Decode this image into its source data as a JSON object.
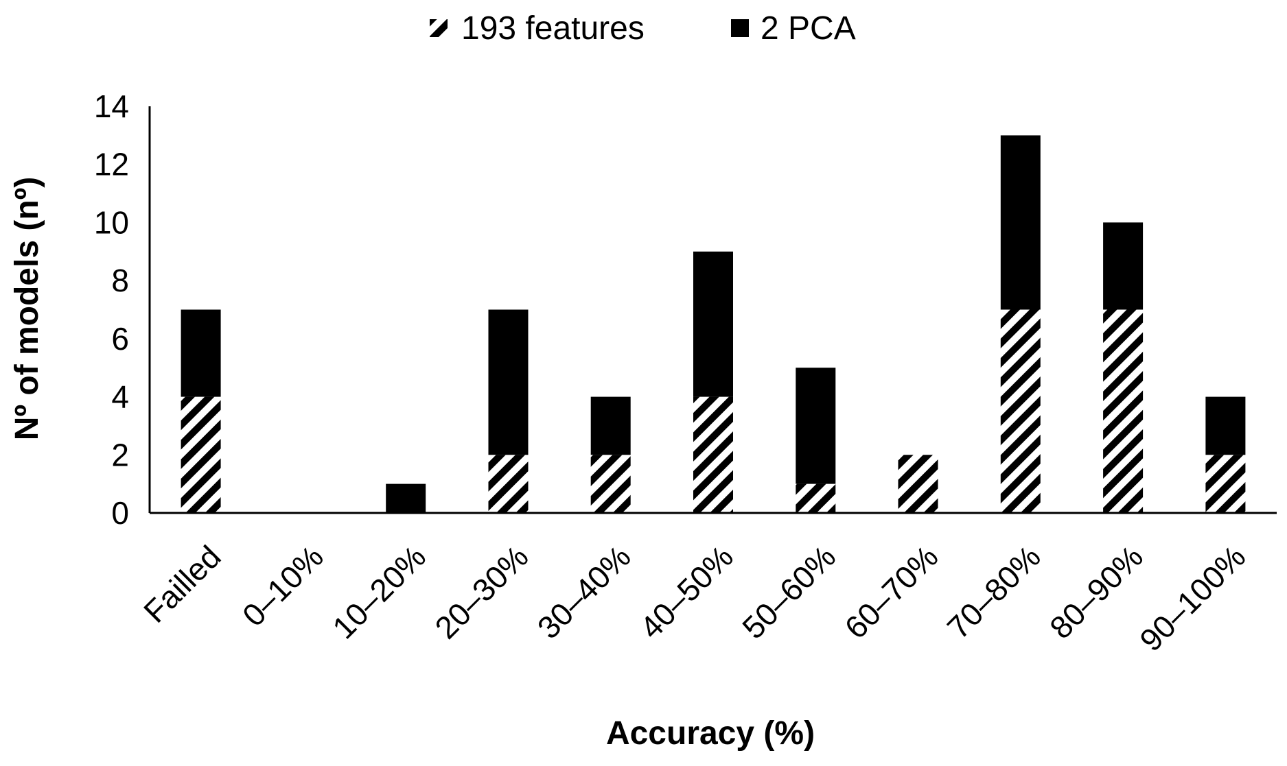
{
  "chart_data": {
    "type": "bar",
    "stacked": true,
    "xlabel": "Accuracy (%)",
    "ylabel": "Nº of models (nº)",
    "ylim": [
      0,
      14
    ],
    "yticks": [
      0,
      2,
      4,
      6,
      8,
      10,
      12,
      14
    ],
    "grid": false,
    "legend_position": "top",
    "categories": [
      "Failled",
      "0–10%",
      "10–20%",
      "20–30%",
      "30–40%",
      "40–50%",
      "50–60%",
      "60–70%",
      "70–80%",
      "80–90%",
      "90–100%"
    ],
    "series": [
      {
        "name": "193 features",
        "pattern": "diagonal-hatch",
        "color": "#000000",
        "values": [
          4,
          0,
          0,
          2,
          2,
          4,
          1,
          2,
          7,
          7,
          2
        ]
      },
      {
        "name": "2 PCA",
        "pattern": "solid",
        "color": "#000000",
        "values": [
          3,
          0,
          1,
          5,
          2,
          5,
          4,
          0,
          6,
          3,
          2
        ]
      }
    ]
  }
}
